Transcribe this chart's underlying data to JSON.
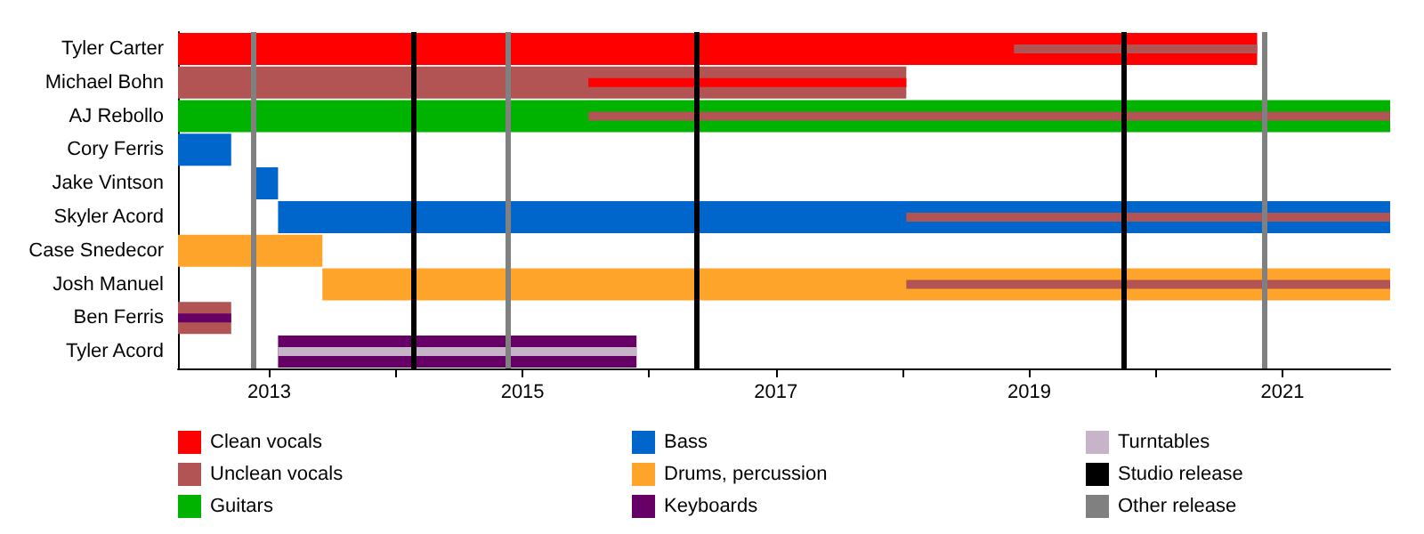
{
  "chart_data": {
    "type": "bar",
    "orientation": "horizontal",
    "categories": [
      "Tyler Carter",
      "Michael Bohn",
      "AJ Rebollo",
      "Cory Ferris",
      "Jake Vintson",
      "Skyler Acord",
      "Case Snedecor",
      "Josh Manuel",
      "Ben Ferris",
      "Tyler Acord"
    ],
    "series": [
      {
        "name": "Clean vocals",
        "color": "#ff0000",
        "values": [
          8.52,
          2.51,
          null,
          null,
          null,
          null,
          null,
          null,
          null,
          null
        ],
        "base": [
          2012.28,
          2015.52,
          null,
          null,
          null,
          null,
          null,
          null,
          null,
          null
        ]
      },
      {
        "name": "Unclean vocals",
        "color": "#b35454",
        "values": [
          1.92,
          5.75,
          6.33,
          null,
          null,
          3.82,
          null,
          3.82,
          0.42,
          null
        ],
        "base": [
          2018.88,
          2012.28,
          2015.52,
          null,
          null,
          2018.03,
          null,
          2018.03,
          2012.28,
          null
        ]
      },
      {
        "name": "Guitars",
        "color": "#00b300",
        "values": [
          null,
          null,
          9.57,
          null,
          null,
          null,
          null,
          null,
          null,
          null
        ],
        "base": [
          null,
          null,
          2012.28,
          null,
          null,
          null,
          null,
          null,
          null,
          null
        ]
      },
      {
        "name": "Bass",
        "color": "#0066cc",
        "values": [
          null,
          null,
          null,
          0.42,
          0.2,
          8.78,
          null,
          null,
          null,
          null
        ],
        "base": [
          null,
          null,
          null,
          2012.28,
          2012.87,
          2013.07,
          null,
          null,
          null,
          null
        ]
      },
      {
        "name": "Drums, percussion",
        "color": "#ffa42b",
        "values": [
          null,
          null,
          null,
          null,
          null,
          null,
          1.14,
          8.43,
          null,
          null
        ],
        "base": [
          null,
          null,
          null,
          null,
          null,
          null,
          2012.28,
          2013.42,
          null,
          null
        ]
      },
      {
        "name": "Keyboards",
        "color": "#660066",
        "values": [
          null,
          null,
          null,
          null,
          null,
          null,
          null,
          null,
          0.42,
          2.83
        ],
        "base": [
          null,
          null,
          null,
          null,
          null,
          null,
          null,
          null,
          2012.28,
          2013.07
        ]
      },
      {
        "name": "Turntables",
        "color": "#c8b4c8",
        "values": [
          null,
          null,
          null,
          null,
          null,
          null,
          null,
          null,
          null,
          2.83
        ],
        "base": [
          null,
          null,
          null,
          null,
          null,
          null,
          null,
          null,
          null,
          2013.07
        ]
      }
    ],
    "ref_lines": [
      {
        "axis": "x",
        "value": 2014.14,
        "label": "Studio release",
        "color": "#000000"
      },
      {
        "axis": "x",
        "value": 2016.37,
        "color": "#000000"
      },
      {
        "axis": "x",
        "value": 2019.75,
        "color": "#000000"
      },
      {
        "axis": "x",
        "value": 2012.87,
        "label": "Other release",
        "color": "#808080"
      },
      {
        "axis": "x",
        "value": 2014.88,
        "color": "#808080"
      },
      {
        "axis": "x",
        "value": 2020.85,
        "color": "#808080"
      }
    ],
    "xlim": [
      2012.28,
      2021.85
    ],
    "xticks": [
      2013,
      {
        "value": 2014,
        "label": null
      },
      2015,
      {
        "value": 2016,
        "label": null
      },
      2017,
      {
        "value": 2018,
        "label": null
      },
      2019,
      {
        "value": 2020,
        "label": null
      },
      2021
    ],
    "grid": false,
    "legend": "bottom"
  }
}
